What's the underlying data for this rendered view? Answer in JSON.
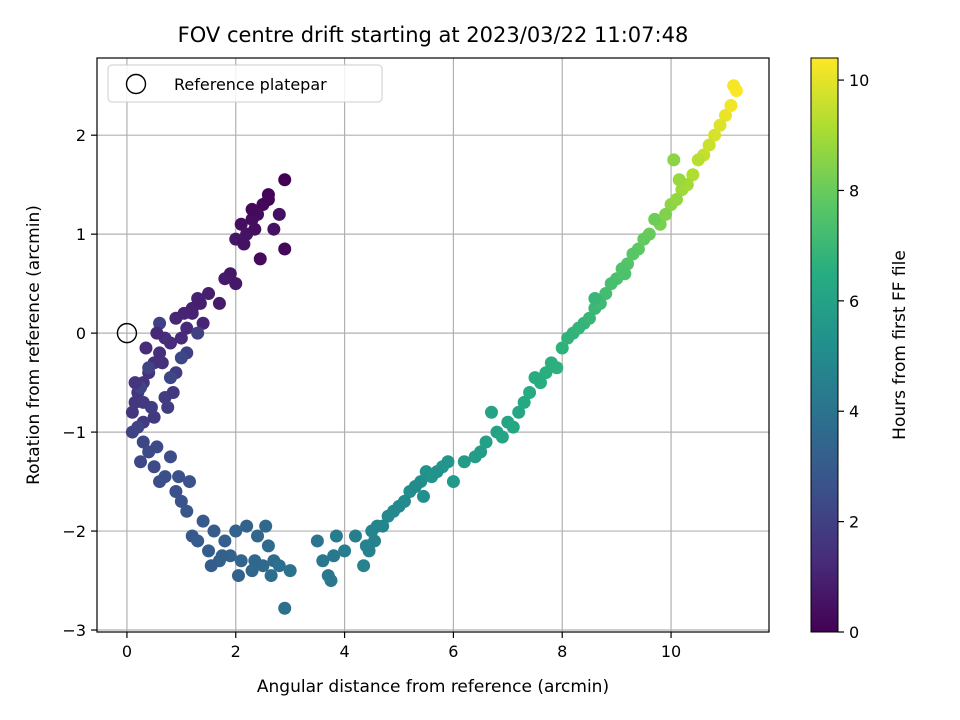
{
  "chart_data": {
    "type": "scatter",
    "title": "FOV centre drift starting at 2023/03/22 11:07:48",
    "xlabel": "Angular distance from reference (arcmin)",
    "ylabel": "Rotation from reference (arcmin)",
    "xlim": [
      -0.55,
      11.8
    ],
    "ylim": [
      -3.02,
      2.78
    ],
    "xticks": [
      "0",
      "2",
      "4",
      "6",
      "8",
      "10"
    ],
    "yticks": [
      "−3",
      "−2",
      "−1",
      "0",
      "1",
      "2"
    ],
    "grid": true,
    "legend": {
      "position": "top-left",
      "entries": [
        {
          "label": "Reference platepar",
          "marker": "open-circle",
          "x": 0,
          "y": 0
        }
      ]
    },
    "colorbar": {
      "label": "Hours from first FF file",
      "colormap": "viridis",
      "range": [
        0,
        10.4
      ],
      "ticks": [
        "0",
        "2",
        "4",
        "6",
        "8",
        "10"
      ]
    },
    "series": [
      {
        "x": [
          2.9,
          2.6,
          2.5,
          2.4,
          2.3,
          2.1,
          2.8,
          2.7,
          2.2,
          2.0,
          1.9,
          2.45,
          2.9,
          2.0,
          1.7,
          1.8,
          2.3,
          2.6,
          2.35,
          2.15
        ],
        "y": [
          1.55,
          1.4,
          1.3,
          1.2,
          1.15,
          1.1,
          1.2,
          1.05,
          1.0,
          0.95,
          0.6,
          0.75,
          0.85,
          0.5,
          0.3,
          0.55,
          1.25,
          1.35,
          1.05,
          0.9
        ],
        "c": [
          0.0,
          0.1,
          0.2,
          0.3,
          0.35,
          0.4,
          0.45,
          0.5,
          0.55,
          0.6,
          0.65,
          0.3,
          0.2,
          0.7,
          0.8,
          0.75,
          0.25,
          0.15,
          0.4,
          0.5
        ]
      },
      {
        "x": [
          1.5,
          1.3,
          1.2,
          1.4,
          1.1,
          1.0,
          0.8,
          0.6,
          0.5,
          0.4,
          0.3,
          0.2,
          0.15,
          0.1,
          0.3,
          0.5,
          0.7,
          0.9,
          1.1,
          1.3,
          0.6,
          0.4,
          0.25,
          0.8,
          1.0,
          1.2,
          0.9,
          0.7,
          0.45,
          0.35,
          0.55,
          0.65,
          0.2,
          0.1,
          0.15,
          0.3,
          1.35,
          1.05,
          0.85,
          0.75
        ],
        "y": [
          0.4,
          0.35,
          0.2,
          0.1,
          0.05,
          -0.05,
          -0.1,
          -0.2,
          -0.3,
          -0.4,
          -0.5,
          -0.6,
          -0.7,
          -0.8,
          -0.9,
          -0.85,
          -0.65,
          -0.4,
          -0.2,
          0.0,
          0.1,
          -0.35,
          -0.55,
          -0.45,
          -0.25,
          0.25,
          0.15,
          -0.05,
          -0.75,
          -0.15,
          0.0,
          -0.3,
          -0.95,
          -1.0,
          -0.5,
          -0.7,
          0.3,
          0.2,
          -0.6,
          -0.75
        ],
        "c": [
          0.9,
          1.0,
          1.05,
          1.1,
          1.2,
          1.25,
          1.3,
          1.4,
          1.45,
          1.5,
          1.55,
          1.6,
          1.65,
          1.7,
          1.75,
          1.8,
          1.85,
          1.9,
          1.95,
          2.0,
          2.05,
          2.1,
          2.15,
          2.2,
          2.25,
          1.0,
          1.15,
          1.35,
          1.9,
          1.3,
          1.2,
          1.5,
          2.1,
          2.15,
          1.6,
          1.8,
          0.95,
          1.1,
          1.75,
          1.85
        ]
      },
      {
        "x": [
          0.3,
          0.25,
          0.4,
          0.5,
          0.6,
          0.7,
          0.9,
          1.0,
          1.1,
          1.2,
          1.3,
          1.5,
          1.7,
          1.9,
          2.1,
          2.3,
          2.5,
          2.7,
          2.8,
          3.0,
          2.4,
          2.2,
          2.0,
          1.8,
          1.6,
          1.4,
          0.55,
          0.8,
          0.95,
          1.15,
          2.6,
          2.65,
          2.9,
          2.35,
          2.55,
          1.75,
          1.55,
          2.05
        ],
        "y": [
          -1.1,
          -1.3,
          -1.2,
          -1.35,
          -1.5,
          -1.45,
          -1.6,
          -1.7,
          -1.8,
          -2.05,
          -2.1,
          -2.2,
          -2.3,
          -2.25,
          -2.3,
          -2.4,
          -2.35,
          -2.3,
          -2.35,
          -2.4,
          -2.05,
          -1.95,
          -2.0,
          -2.1,
          -2.0,
          -1.9,
          -1.15,
          -1.25,
          -1.45,
          -1.5,
          -2.15,
          -2.45,
          -2.78,
          -2.3,
          -1.95,
          -2.25,
          -2.35,
          -2.45
        ],
        "c": [
          2.2,
          2.3,
          2.35,
          2.4,
          2.5,
          2.55,
          2.6,
          2.7,
          2.8,
          2.9,
          3.0,
          3.1,
          3.2,
          3.3,
          3.4,
          3.5,
          3.6,
          3.7,
          3.8,
          3.9,
          3.45,
          3.35,
          3.25,
          3.15,
          3.05,
          2.95,
          2.35,
          2.45,
          2.6,
          2.7,
          3.65,
          3.75,
          3.85,
          3.55,
          3.6,
          3.2,
          3.1,
          3.3
        ]
      },
      {
        "x": [
          3.5,
          3.6,
          3.7,
          3.75,
          3.85,
          3.8,
          4.0,
          4.2,
          4.35,
          4.5,
          4.6,
          4.8,
          5.0,
          5.2,
          5.4,
          5.5,
          5.6,
          5.8,
          6.0,
          6.2,
          6.5,
          6.6,
          6.8,
          7.0,
          7.2,
          7.3,
          4.4,
          4.55,
          4.7,
          4.9,
          5.1,
          5.3,
          5.45,
          5.7,
          5.9,
          6.4,
          6.7,
          6.9,
          7.1,
          4.45
        ],
        "y": [
          -2.1,
          -2.3,
          -2.45,
          -2.5,
          -2.05,
          -2.25,
          -2.2,
          -2.05,
          -2.35,
          -2.0,
          -1.95,
          -1.85,
          -1.75,
          -1.6,
          -1.5,
          -1.4,
          -1.45,
          -1.35,
          -1.5,
          -1.3,
          -1.2,
          -1.1,
          -1.0,
          -0.9,
          -0.8,
          -0.7,
          -2.15,
          -2.1,
          -1.95,
          -1.8,
          -1.7,
          -1.55,
          -1.65,
          -1.4,
          -1.3,
          -1.25,
          -0.8,
          -1.05,
          -0.95,
          -2.2
        ],
        "c": [
          4.0,
          4.1,
          4.15,
          4.2,
          4.3,
          4.25,
          4.4,
          4.5,
          4.6,
          4.7,
          4.8,
          4.9,
          5.0,
          5.1,
          5.2,
          5.3,
          5.4,
          5.5,
          5.6,
          5.7,
          5.8,
          5.9,
          6.0,
          6.1,
          6.2,
          6.3,
          4.55,
          4.65,
          4.75,
          4.85,
          4.95,
          5.05,
          5.15,
          5.35,
          5.45,
          5.75,
          6.05,
          6.15,
          6.25,
          4.6
        ]
      },
      {
        "x": [
          7.4,
          7.6,
          7.8,
          8.0,
          8.2,
          8.4,
          8.6,
          8.8,
          9.0,
          9.2,
          9.4,
          9.6,
          9.8,
          10.0,
          10.2,
          10.4,
          10.6,
          10.8,
          11.0,
          11.2,
          7.7,
          7.9,
          8.1,
          8.3,
          8.5,
          8.7,
          8.9,
          9.1,
          9.3,
          9.5,
          9.7,
          9.9,
          10.1,
          10.3,
          10.5,
          10.7,
          10.9,
          11.1,
          7.5,
          8.6,
          9.15,
          10.05,
          11.15,
          10.15
        ],
        "y": [
          -0.6,
          -0.5,
          -0.3,
          -0.15,
          0.0,
          0.1,
          0.25,
          0.4,
          0.55,
          0.7,
          0.85,
          1.0,
          1.1,
          1.3,
          1.45,
          1.6,
          1.8,
          2.0,
          2.2,
          2.45,
          -0.4,
          -0.35,
          -0.05,
          0.05,
          0.15,
          0.3,
          0.5,
          0.65,
          0.8,
          0.95,
          1.15,
          1.2,
          1.35,
          1.5,
          1.75,
          1.9,
          2.1,
          2.3,
          -0.45,
          0.35,
          0.6,
          1.75,
          2.5,
          1.55
        ],
        "c": [
          6.4,
          6.5,
          6.6,
          6.7,
          6.8,
          6.9,
          7.0,
          7.2,
          7.4,
          7.6,
          7.8,
          8.0,
          8.3,
          8.6,
          8.9,
          9.2,
          9.5,
          9.8,
          10.1,
          10.4,
          6.55,
          6.65,
          6.75,
          6.85,
          6.95,
          7.1,
          7.3,
          7.5,
          7.7,
          7.9,
          8.1,
          8.4,
          8.7,
          9.0,
          9.3,
          9.6,
          9.9,
          10.2,
          6.45,
          6.95,
          7.45,
          8.6,
          10.3,
          8.8
        ]
      }
    ]
  }
}
